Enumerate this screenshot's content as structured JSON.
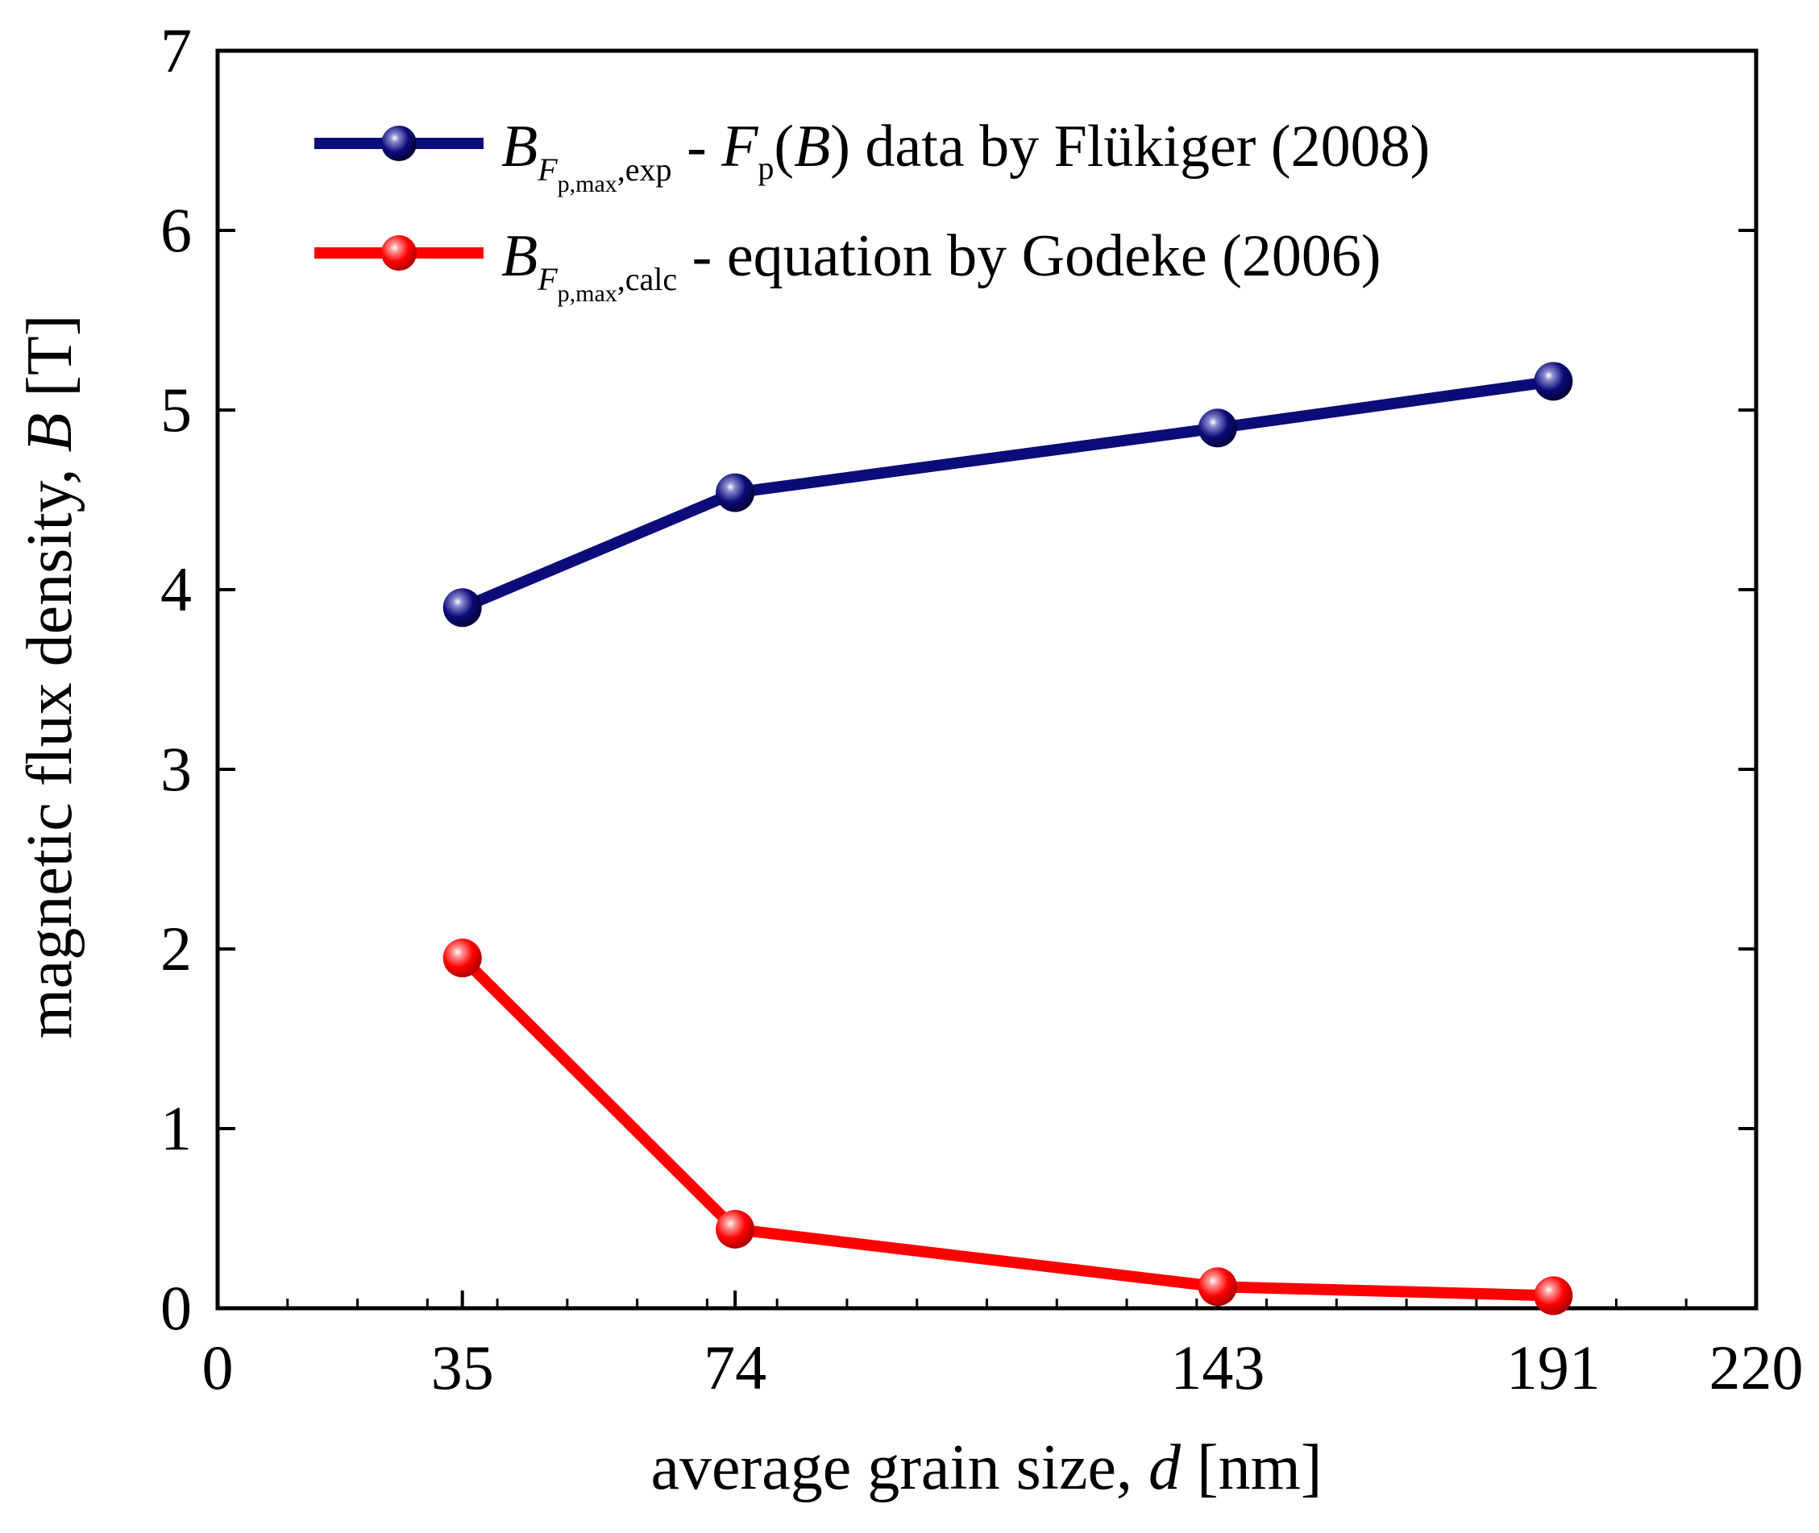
{
  "chart_data": {
    "type": "line",
    "title": "",
    "xlabel": "average grain size, d [nm]",
    "xlabel_parts": [
      "average grain size, ",
      "d",
      " [nm]"
    ],
    "ylabel": "magnetic flux density, B [T]",
    "ylabel_parts": [
      "magnetic flux density, ",
      "B",
      " [T]"
    ],
    "xlim": [
      0,
      220
    ],
    "ylim": [
      0,
      7
    ],
    "xticks": [
      0,
      35,
      74,
      143,
      191,
      220
    ],
    "yticks": [
      0,
      1,
      2,
      3,
      4,
      5,
      6,
      7
    ],
    "grid": false,
    "legend_position": "top-right",
    "series": [
      {
        "name": "B_{F_{p,max},exp} - F_p(B) data by Flükiger (2008)",
        "legend": {
          "main": "B",
          "sub": "F",
          "subsub": "p,max",
          "sub_tail": ",exp",
          "text_a": " - ",
          "f": "F",
          "f_sub": "p",
          "text_b": "(",
          "b": "B",
          "text_c": ") data by Flükiger (2008)"
        },
        "color": "#0b0b7a",
        "x": [
          35,
          74,
          143,
          191
        ],
        "y": [
          3.9,
          4.54,
          4.9,
          5.16
        ]
      },
      {
        "name": "B_{F_{p,max},calc} - equation by Godeke (2006)",
        "legend": {
          "main": "B",
          "sub": "F",
          "subsub": "p,max",
          "sub_tail": ",calc",
          "text_a": " - equation by Godeke (2006)"
        },
        "color": "#ff0000",
        "x": [
          35,
          74,
          143,
          191
        ],
        "y": [
          1.95,
          0.44,
          0.12,
          0.07
        ]
      }
    ]
  }
}
